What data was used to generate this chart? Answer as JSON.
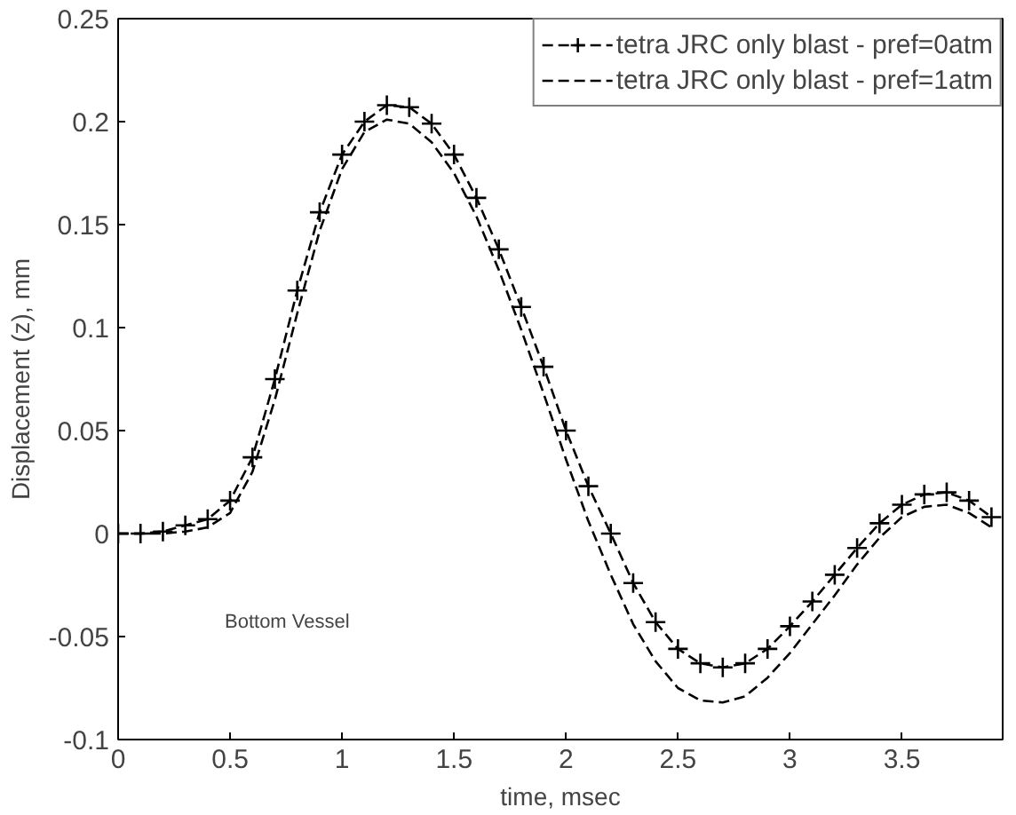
{
  "chart_data": {
    "type": "line",
    "xlabel": "time, msec",
    "ylabel": "Displacement (z), mm",
    "x": [
      0,
      0.1,
      0.2,
      0.3,
      0.4,
      0.5,
      0.6,
      0.7,
      0.8,
      0.9,
      1.0,
      1.1,
      1.2,
      1.3,
      1.4,
      1.5,
      1.6,
      1.7,
      1.8,
      1.9,
      2.0,
      2.1,
      2.2,
      2.3,
      2.4,
      2.5,
      2.6,
      2.7,
      2.8,
      2.9,
      3.0,
      3.1,
      3.2,
      3.3,
      3.4,
      3.5,
      3.6,
      3.7,
      3.8,
      3.9
    ],
    "series": [
      {
        "name": "tetra JRC only blast - pref=0atm",
        "color": "#000000",
        "marker": "cross",
        "values": [
          0,
          0,
          0.001,
          0.004,
          0.007,
          0.016,
          0.037,
          0.075,
          0.118,
          0.156,
          0.184,
          0.2,
          0.208,
          0.207,
          0.199,
          0.184,
          0.163,
          0.138,
          0.11,
          0.081,
          0.05,
          0.023,
          0.0,
          -0.024,
          -0.043,
          -0.056,
          -0.063,
          -0.065,
          -0.063,
          -0.056,
          -0.045,
          -0.033,
          -0.02,
          -0.007,
          0.005,
          0.014,
          0.019,
          0.02,
          0.016,
          0.008
        ]
      },
      {
        "name": "tetra JRC only blast - pref=1atm",
        "color": "#000000",
        "marker": "none",
        "values": [
          0,
          0,
          0,
          0.001,
          0.003,
          0.01,
          0.03,
          0.065,
          0.107,
          0.147,
          0.177,
          0.195,
          0.201,
          0.199,
          0.19,
          0.175,
          0.154,
          0.128,
          0.099,
          0.068,
          0.036,
          0.006,
          -0.02,
          -0.044,
          -0.062,
          -0.075,
          -0.081,
          -0.082,
          -0.079,
          -0.07,
          -0.058,
          -0.044,
          -0.03,
          -0.015,
          -0.002,
          0.008,
          0.013,
          0.014,
          0.01,
          0.003
        ]
      }
    ],
    "xlim": [
      0,
      3.95
    ],
    "ylim": [
      -0.1,
      0.25
    ],
    "xticks": [
      0,
      0.5,
      1,
      1.5,
      2,
      2.5,
      3,
      3.5
    ],
    "yticks": [
      -0.1,
      -0.05,
      0,
      0.05,
      0.1,
      0.15,
      0.2,
      0.25
    ],
    "line_style": "dashed",
    "legend": "top right",
    "grid": false,
    "annotations": [
      "Bottom Vessel"
    ]
  }
}
